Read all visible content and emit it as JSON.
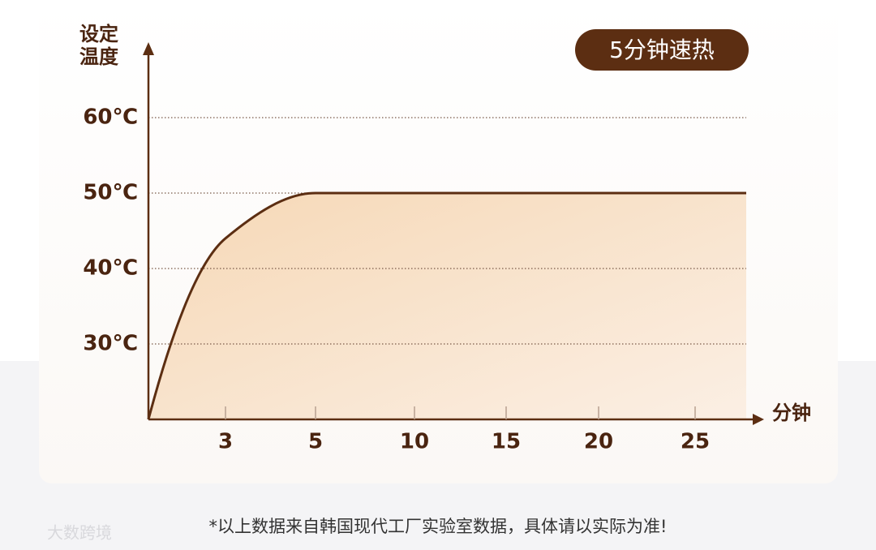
{
  "chart_data": {
    "type": "area",
    "title": "5分钟速热",
    "y_label": "设定温度",
    "x_label": "分钟",
    "categories": [
      null,
      "3",
      "5",
      "10",
      "15",
      "20",
      "25",
      null
    ],
    "series": [
      {
        "name": "设定温度",
        "color": "#5c2e12",
        "values": [
          20,
          44,
          50,
          50,
          50,
          50,
          50,
          50
        ]
      }
    ],
    "ylim": [
      20,
      70
    ],
    "yticks": [
      {
        "value": 30,
        "label": "30℃"
      },
      {
        "value": 40,
        "label": "40℃"
      },
      {
        "value": 50,
        "label": "50℃"
      },
      {
        "value": 60,
        "label": "60℃"
      }
    ],
    "grid": true,
    "footnote": "*以上数据来自韩国现代工厂实验室数据，具体请以实际为准!",
    "watermark": "大数跨境"
  }
}
